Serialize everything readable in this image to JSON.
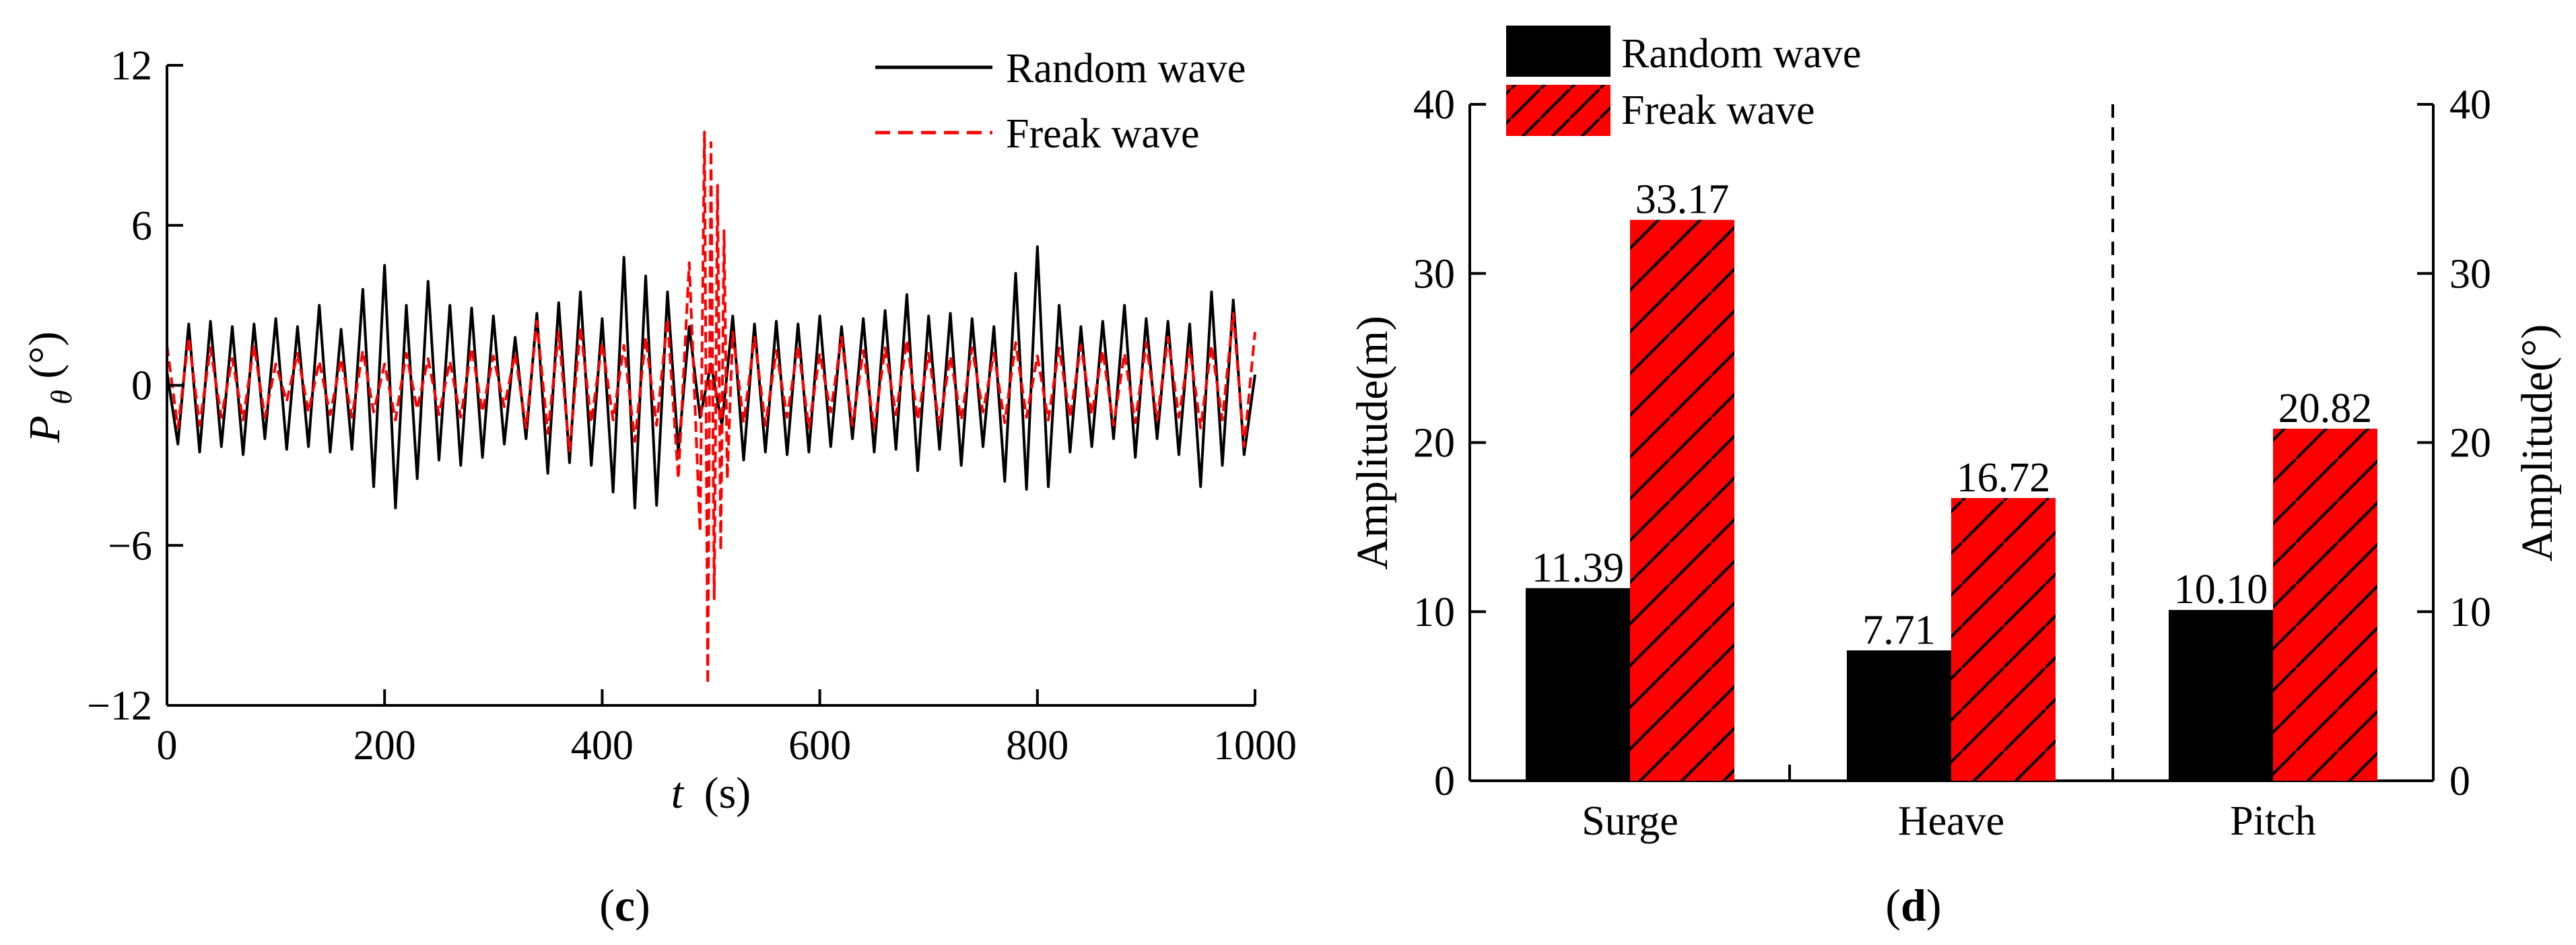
{
  "chart_data": [
    {
      "type": "line",
      "panel": "c",
      "xlabel": "t",
      "xunit": "(s)",
      "ylabel": "P",
      "ylabel_sub": "θ",
      "ylabel_unit": "(°)",
      "xlim": [
        0,
        1000
      ],
      "ylim": [
        -12,
        12
      ],
      "xticks": [
        "0",
        "200",
        "400",
        "600",
        "800",
        "1000"
      ],
      "yticks": [
        "12",
        "6",
        "0",
        "−6",
        "−12"
      ],
      "legend": "top-right",
      "series": [
        {
          "name": "Random wave",
          "color": "#000000",
          "style": "solid",
          "x": [
            0,
            10,
            20,
            30,
            40,
            50,
            60,
            70,
            80,
            90,
            100,
            110,
            120,
            130,
            140,
            150,
            160,
            170,
            180,
            190,
            200,
            210,
            220,
            230,
            240,
            250,
            260,
            270,
            280,
            290,
            300,
            310,
            320,
            330,
            340,
            350,
            360,
            370,
            380,
            390,
            400,
            410,
            420,
            430,
            440,
            450,
            460,
            470,
            480,
            490,
            500,
            510,
            520,
            530,
            540,
            550,
            560,
            570,
            580,
            590,
            600,
            610,
            620,
            630,
            640,
            650,
            660,
            670,
            680,
            690,
            700,
            710,
            720,
            730,
            740,
            750,
            760,
            770,
            780,
            790,
            800,
            810,
            820,
            830,
            840,
            850,
            860,
            870,
            880,
            890,
            900,
            910,
            920,
            930,
            940,
            950,
            960,
            970,
            980,
            990,
            1000
          ],
          "values": [
            0.5,
            -2.2,
            2.3,
            -2.5,
            2.4,
            -2.3,
            2.2,
            -2.6,
            2.3,
            -2.0,
            2.5,
            -2.4,
            2.2,
            -2.3,
            3.0,
            -2.5,
            2.1,
            -2.4,
            3.6,
            -3.8,
            4.5,
            -4.6,
            3.0,
            -3.5,
            3.9,
            -2.8,
            3.0,
            -3.0,
            2.9,
            -2.7,
            2.6,
            -2.2,
            1.8,
            -2.0,
            2.7,
            -3.3,
            3.1,
            -2.9,
            3.5,
            -3.0,
            2.5,
            -4.0,
            4.8,
            -4.6,
            4.1,
            -4.5,
            3.5,
            -2.5,
            2.2,
            -1.2,
            0.8,
            -1.5,
            2.6,
            -2.8,
            2.3,
            -2.5,
            2.4,
            -2.6,
            2.3,
            -2.5,
            2.6,
            -2.3,
            2.2,
            -2.0,
            2.5,
            -2.5,
            2.8,
            -2.4,
            3.4,
            -3.2,
            2.6,
            -2.4,
            2.7,
            -3.0,
            2.5,
            -2.3,
            2.2,
            -3.6,
            4.2,
            -3.9,
            5.2,
            -3.8,
            3.0,
            -2.5,
            2.2,
            -2.3,
            2.4,
            -2.0,
            3.0,
            -2.7,
            2.5,
            -2.0,
            2.4,
            -2.6,
            2.3,
            -3.8,
            3.5,
            -3.0,
            3.2,
            -2.6,
            0.4
          ]
        },
        {
          "name": "Freak wave",
          "color": "#ff0000",
          "style": "dashed",
          "x": [
            0,
            10,
            20,
            30,
            40,
            50,
            60,
            70,
            80,
            90,
            100,
            110,
            120,
            130,
            140,
            150,
            160,
            170,
            180,
            190,
            200,
            210,
            220,
            230,
            240,
            250,
            260,
            270,
            280,
            290,
            300,
            310,
            320,
            330,
            340,
            350,
            360,
            370,
            380,
            390,
            400,
            410,
            420,
            430,
            440,
            450,
            460,
            470,
            480,
            490,
            494,
            497,
            500,
            503,
            506,
            509,
            512,
            515,
            520,
            530,
            540,
            550,
            560,
            570,
            580,
            590,
            600,
            610,
            620,
            630,
            640,
            650,
            660,
            670,
            680,
            690,
            700,
            710,
            720,
            730,
            740,
            750,
            760,
            770,
            780,
            790,
            800,
            810,
            820,
            830,
            840,
            850,
            860,
            870,
            880,
            890,
            900,
            910,
            920,
            930,
            940,
            950,
            960,
            970,
            980,
            990,
            1000
          ],
          "values": [
            1.5,
            -1.6,
            1.8,
            -1.5,
            1.4,
            -1.2,
            1.0,
            -1.3,
            1.5,
            -1.2,
            0.8,
            -0.6,
            1.2,
            -1.0,
            0.9,
            -1.1,
            1.0,
            -1.2,
            1.3,
            -1.0,
            0.8,
            -1.3,
            1.2,
            -0.9,
            1.0,
            -1.1,
            0.9,
            -1.2,
            1.4,
            -1.0,
            1.1,
            -0.8,
            1.2,
            -1.6,
            2.4,
            -1.8,
            2.0,
            -2.5,
            2.2,
            -1.4,
            1.6,
            -1.3,
            1.5,
            -2.1,
            1.8,
            -1.5,
            2.5,
            -3.5,
            4.6,
            -5.5,
            9.5,
            -11.2,
            9.1,
            -8.0,
            7.5,
            -6.2,
            5.8,
            -3.5,
            2.0,
            -1.4,
            1.8,
            -1.5,
            1.3,
            -1.2,
            1.5,
            -1.6,
            1.2,
            -1.0,
            1.8,
            -1.5,
            1.3,
            -1.6,
            1.4,
            -1.1,
            1.7,
            -1.3,
            1.2,
            -1.5,
            1.1,
            -1.3,
            1.4,
            -1.0,
            1.2,
            -1.4,
            1.6,
            -1.2,
            1.1,
            -1.3,
            1.4,
            -1.2,
            1.5,
            -1.1,
            1.3,
            -1.5,
            1.2,
            -1.4,
            1.6,
            -1.3,
            1.8,
            -1.2,
            1.4,
            -1.6,
            1.5,
            -1.3,
            2.7,
            -2.3,
            2.0
          ]
        }
      ]
    },
    {
      "type": "bar",
      "panel": "d",
      "categories": [
        "Surge",
        "Heave",
        "Pitch"
      ],
      "series": [
        {
          "name": "Random wave",
          "color": "#000000",
          "pattern": "solid",
          "values": [
            11.39,
            7.71,
            10.1
          ],
          "labels": [
            "11.39",
            "7.71",
            "10.10"
          ]
        },
        {
          "name": "Freak wave",
          "color": "#ff0000",
          "pattern": "hatched",
          "values": [
            33.17,
            16.72,
            20.82
          ],
          "labels": [
            "33.17",
            "16.72",
            "20.82"
          ]
        }
      ],
      "ylabel": "Amplitude(m)",
      "y2label": "Amplitude(°)",
      "ylim": [
        0,
        40
      ],
      "y2lim": [
        0,
        40
      ],
      "yticks": [
        "0",
        "10",
        "20",
        "30",
        "40"
      ],
      "y2ticks": [
        "0",
        "10",
        "20",
        "30",
        "40"
      ],
      "legend": "top-left",
      "separator_after": "Heave"
    }
  ],
  "panels": {
    "c": "c",
    "d": "d"
  }
}
